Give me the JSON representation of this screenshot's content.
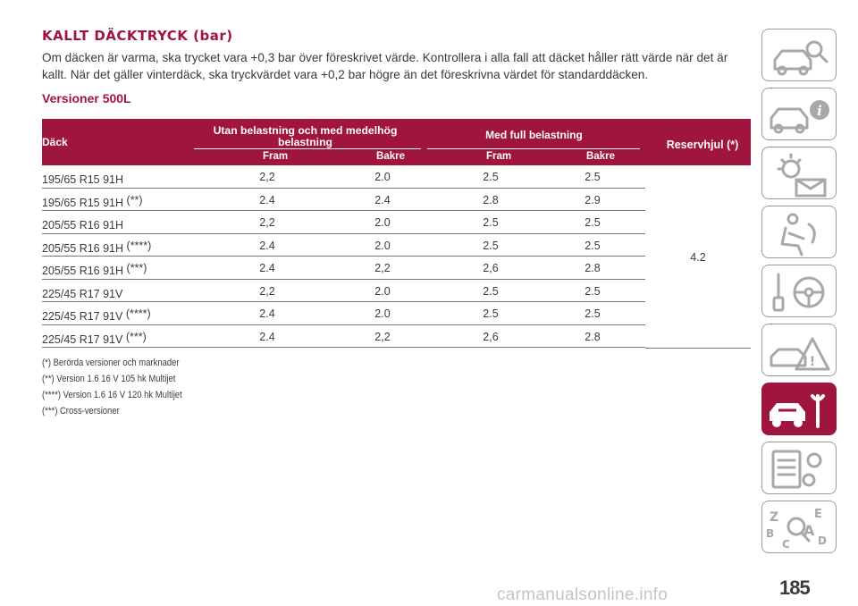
{
  "section_title": "KALLT DÄCKTRYCK (bar)",
  "intro": "Om däcken är varma, ska trycket vara +0,3 bar över föreskrivet värde. Kontrollera i alla fall att däcket håller rätt värde när det är kallt. När det gäller vinterdäck, ska tryckvärdet vara +0,2 bar högre än det föreskrivna värdet för standarddäcken.",
  "subtitle": "Versioner 500L",
  "table": {
    "headers": {
      "tire": "Däck",
      "unladen": "Utan belastning och med medelhög belastning",
      "full": "Med full belastning",
      "reserve": "Reservhjul (*)",
      "front": "Fram",
      "rear": "Bakre"
    },
    "rows": [
      {
        "tire": "195/65 R15 91H",
        "mark": "",
        "v1": "2,2",
        "v2": "2.0",
        "v3": "2.5",
        "v4": "2.5"
      },
      {
        "tire": "195/65 R15 91H",
        "mark": "(**)",
        "v1": "2.4",
        "v2": "2.4",
        "v3": "2.8",
        "v4": "2.9"
      },
      {
        "tire": "205/55 R16 91H",
        "mark": "",
        "v1": "2,2",
        "v2": "2.0",
        "v3": "2.5",
        "v4": "2.5"
      },
      {
        "tire": "205/55 R16 91H",
        "mark": "(****)",
        "v1": "2.4",
        "v2": "2.0",
        "v3": "2.5",
        "v4": "2.5"
      },
      {
        "tire": "205/55 R16 91H",
        "mark": "(***)",
        "v1": "2.4",
        "v2": "2,2",
        "v3": "2,6",
        "v4": "2.8"
      },
      {
        "tire": "225/45 R17 91V",
        "mark": "",
        "v1": "2,2",
        "v2": "2.0",
        "v3": "2.5",
        "v4": "2.5"
      },
      {
        "tire": "225/45 R17 91V",
        "mark": "(****)",
        "v1": "2.4",
        "v2": "2.0",
        "v3": "2.5",
        "v4": "2.5"
      },
      {
        "tire": "225/45 R17 91V",
        "mark": "(***)",
        "v1": "2.4",
        "v2": "2,2",
        "v3": "2,6",
        "v4": "2.8"
      }
    ],
    "reserve_value": "4.2"
  },
  "footnotes": [
    "(*) Berörda versioner och marknader",
    "(**) Version 1.6 16 V 105 hk Multijet",
    "(****) Version 1.6 16 V 120 hk Multijet",
    "(***) Cross-versioner"
  ],
  "sidebar": {
    "tabs": [
      {
        "icon": "car-magnifier-icon",
        "active": false
      },
      {
        "icon": "car-info-icon",
        "active": false
      },
      {
        "icon": "warning-light-envelope-icon",
        "active": false
      },
      {
        "icon": "airbag-seat-icon",
        "active": false
      },
      {
        "icon": "key-steering-wheel-icon",
        "active": false
      },
      {
        "icon": "car-warning-triangle-icon",
        "active": false
      },
      {
        "icon": "car-wrench-icon",
        "active": true
      },
      {
        "icon": "spec-list-gears-icon",
        "active": false
      },
      {
        "icon": "alphabet-index-icon",
        "active": false
      }
    ],
    "accent": "#a0153e"
  },
  "page_number": "185",
  "watermark": "carmanualsonline.info"
}
